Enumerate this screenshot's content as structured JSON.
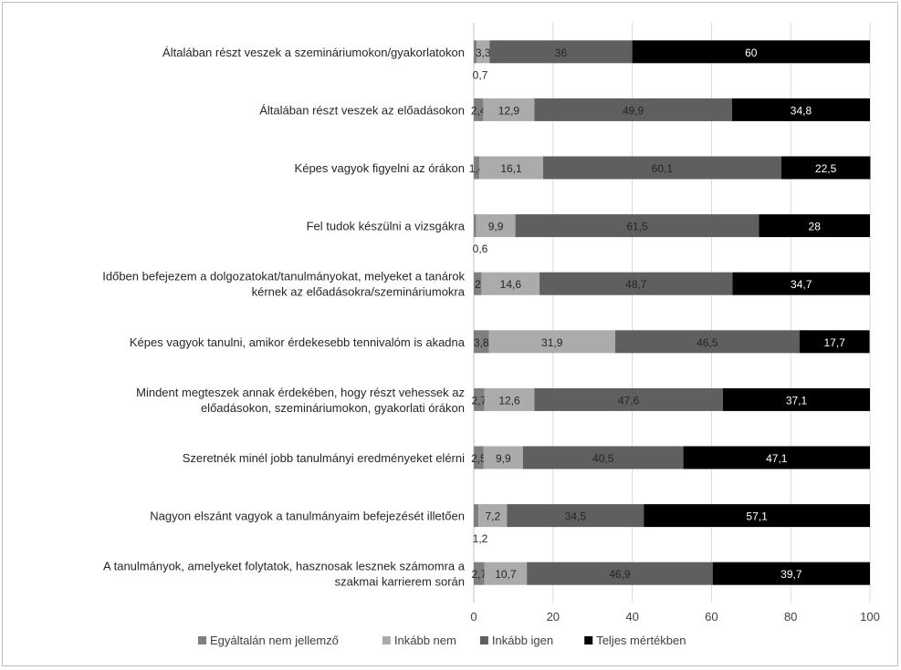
{
  "chart_data": {
    "type": "bar",
    "stacked": true,
    "orientation": "horizontal",
    "title": "",
    "xlabel": "",
    "ylabel": "",
    "xlim": [
      0,
      100
    ],
    "xticks": [
      "0",
      "20",
      "40",
      "60",
      "80",
      "100"
    ],
    "grid": true,
    "legend_position": "bottom",
    "categories": [
      [
        "Általában részt veszek a szemináriumokon/gyakorlatokon"
      ],
      [
        "Általában részt veszek az előadásokon"
      ],
      [
        "Képes vagyok figyelni az órákon"
      ],
      [
        "Fel tudok készülni a vizsgákra"
      ],
      [
        "Időben befejezem a dolgozatokat/tanulmányokat, melyeket a tanárok",
        "kérnek az előadásokra/szemináriumokra"
      ],
      [
        "Képes vagyok tanulni, amikor érdekesebb tennivalóm is akadna"
      ],
      [
        "Mindent megteszek annak érdekében, hogy részt vehessek az",
        "előadásokon, szemináriumokon, gyakorlati órákon"
      ],
      [
        "Szeretnék minél jobb tanulmányi eredményeket elérni"
      ],
      [
        "Nagyon elszánt vagyok a tanulmányaim befejezését illetően"
      ],
      [
        "A tanulmányok, amelyeket folytatok, hasznosak lesznek számomra a",
        "szakmai karrierem során"
      ]
    ],
    "series": [
      {
        "name": "Egyáltalán nem jellemző",
        "color": "#7f7f7f",
        "values": [
          0.7,
          2.4,
          1.4,
          0.6,
          2,
          3.8,
          2.7,
          2.5,
          1.2,
          2.7
        ],
        "labels": [
          "0,7",
          "2,4",
          "1,4",
          "0,6",
          "2",
          "3,8",
          "2,7",
          "2,5",
          "1,2",
          "2,7"
        ]
      },
      {
        "name": "Inkább nem",
        "color": "#ababab",
        "values": [
          3.3,
          12.9,
          16.1,
          9.9,
          14.6,
          31.9,
          12.6,
          9.9,
          7.2,
          10.7
        ],
        "labels": [
          "3,3",
          "12,9",
          "16,1",
          "9,9",
          "14,6",
          "31,9",
          "12,6",
          "9,9",
          "7,2",
          "10,7"
        ]
      },
      {
        "name": "Inkább igen",
        "color": "#5f5f5f",
        "values": [
          36,
          49.9,
          60.1,
          61.5,
          48.7,
          46.5,
          47.6,
          40.5,
          34.5,
          46.9
        ],
        "labels": [
          "36",
          "49,9",
          "60,1",
          "61,5",
          "48,7",
          "46,5",
          "47,6",
          "40,5",
          "34,5",
          "46,9"
        ]
      },
      {
        "name": "Teljes mértékben",
        "color": "#000000",
        "values": [
          60,
          34.8,
          22.5,
          28,
          34.7,
          17.7,
          37.1,
          47.1,
          57.1,
          39.7
        ],
        "labels": [
          "60",
          "34,8",
          "22,5",
          "28",
          "34,7",
          "17,7",
          "37,1",
          "47,1",
          "57,1",
          "39,7"
        ]
      }
    ]
  }
}
